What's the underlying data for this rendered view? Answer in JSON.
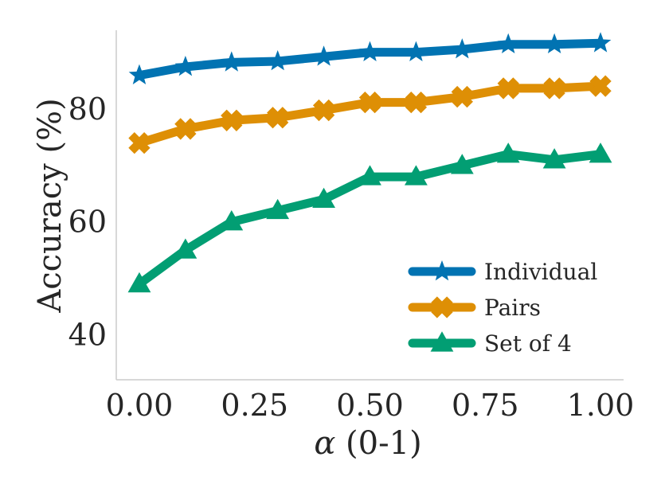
{
  "chart_data": {
    "type": "line",
    "title": "",
    "xlabel": {
      "symbol": "α",
      "rest": " (0-1)"
    },
    "ylabel": "Accuracy (%)",
    "xlim": [
      -0.05,
      1.05
    ],
    "ylim": [
      32,
      94
    ],
    "xticks": [
      0.0,
      0.25,
      0.5,
      0.75,
      1.0
    ],
    "xtick_labels": [
      "0.00",
      "0.25",
      "0.50",
      "0.75",
      "1.00"
    ],
    "yticks": [
      40,
      60,
      80
    ],
    "ytick_labels": [
      "40",
      "60",
      "80"
    ],
    "grid": false,
    "legend_position": "lower-right",
    "x": [
      0.0,
      0.1,
      0.2,
      0.3,
      0.4,
      0.5,
      0.6,
      0.7,
      0.8,
      0.9,
      1.0
    ],
    "series": [
      {
        "name": "Individual",
        "color": "#0173b2",
        "marker": "star",
        "values": [
          86,
          87.5,
          88.3,
          88.5,
          89.3,
          90.1,
          90.1,
          90.6,
          91.5,
          91.5,
          91.7
        ]
      },
      {
        "name": "Pairs",
        "color": "#de8f05",
        "marker": "x",
        "values": [
          74,
          76.5,
          78,
          78.5,
          79.8,
          81.2,
          81.2,
          82.2,
          83.7,
          83.7,
          84.1
        ]
      },
      {
        "name": "Set of 4",
        "color": "#029e73",
        "marker": "triangle",
        "values": [
          49,
          55,
          60,
          62,
          64,
          68,
          68,
          70,
          72,
          71,
          72
        ]
      }
    ]
  }
}
